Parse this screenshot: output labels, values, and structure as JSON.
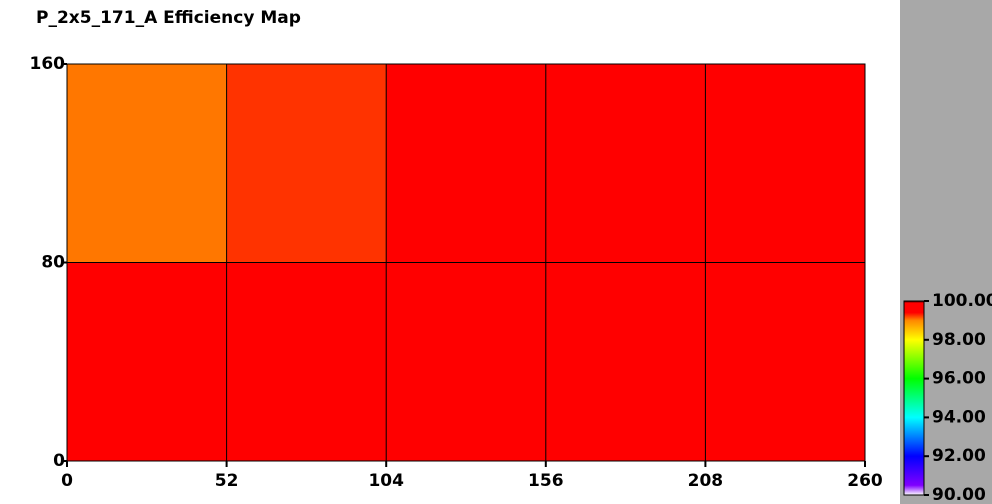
{
  "chart_data": {
    "type": "heatmap",
    "title": "P_2x5_171_A Efficiency Map",
    "xbins": [
      0,
      52,
      104,
      156,
      208,
      260
    ],
    "ybins": [
      0,
      80,
      160
    ],
    "values": [
      [
        99.8,
        99.8,
        99.8,
        99.8,
        99.7
      ],
      [
        99.05,
        99.25,
        99.6,
        99.7,
        99.7
      ]
    ],
    "xlim": [
      0,
      260
    ],
    "ylim": [
      0,
      160
    ],
    "xticks": [
      0,
      52,
      104,
      156,
      208,
      260
    ],
    "yticks": [
      0,
      80,
      160
    ],
    "zlim": [
      90,
      100
    ],
    "zticks": [
      {
        "value": 90,
        "label": "90.00"
      },
      {
        "value": 92,
        "label": "92.00"
      },
      {
        "value": 94,
        "label": "94.00"
      },
      {
        "value": 96,
        "label": "96.00"
      },
      {
        "value": 98,
        "label": "98.00"
      },
      {
        "value": 100,
        "label": "100.00"
      }
    ],
    "colormap": [
      {
        "value": 90,
        "color": "#ffffff"
      },
      {
        "value": 90.5,
        "color": "#8000ff"
      },
      {
        "value": 92,
        "color": "#0000ff"
      },
      {
        "value": 94,
        "color": "#00ffff"
      },
      {
        "value": 96,
        "color": "#00ff00"
      },
      {
        "value": 98,
        "color": "#ffff00"
      },
      {
        "value": 99,
        "color": "#ff8800"
      },
      {
        "value": 99.4,
        "color": "#ff0000"
      },
      {
        "value": 99.9,
        "color": "#ff0000"
      },
      {
        "value": 100,
        "color": "#000000"
      }
    ],
    "grid": true
  }
}
